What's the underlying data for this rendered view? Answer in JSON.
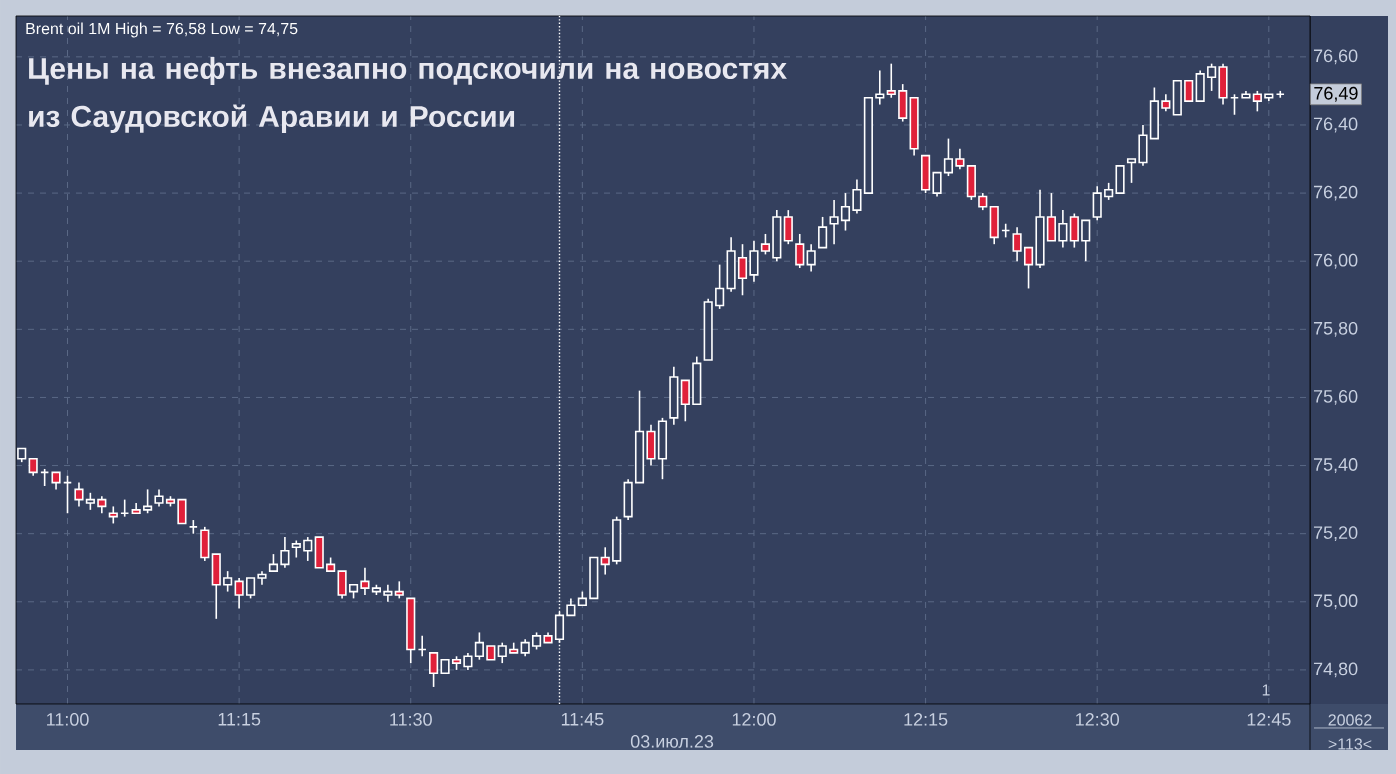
{
  "chart_data": {
    "type": "candlestick",
    "title": "Цены на нефть внезапно подскочили на новостях из Саудовской Аравии и России",
    "xlabel": "03.июл.23",
    "annotations": [
      "Brent oil 1M High = 76,58 Low = 74,75",
      {
        "text": "76,49",
        "y": 76.49
      },
      "1",
      "20062",
      ">113<"
    ],
    "x": [
      10.9333,
      10.95,
      10.9667,
      10.9833,
      11,
      11.0167,
      11.0333,
      11.05,
      11.0667,
      11.0833,
      11.1,
      11.1167,
      11.1333,
      11.15,
      11.1667,
      11.1833,
      11.2,
      11.2167,
      11.2333,
      11.25,
      11.2667,
      11.2833,
      11.3,
      11.3167,
      11.3333,
      11.35,
      11.3667,
      11.3833,
      11.4,
      11.4167,
      11.4333,
      11.45,
      11.4667,
      11.4833,
      11.5,
      11.5167,
      11.5333,
      11.55,
      11.5667,
      11.5833,
      11.6,
      11.6167,
      11.6333,
      11.65,
      11.6667,
      11.6833,
      11.7,
      11.7167,
      11.7333,
      11.75,
      11.7667,
      11.7833,
      11.8,
      11.8167,
      11.8333,
      11.85,
      11.8667,
      11.8833,
      11.9,
      11.9167,
      11.9333,
      11.95,
      11.9667,
      11.9833,
      12,
      12.0167,
      12.0333,
      12.05,
      12.0667,
      12.0833,
      12.1,
      12.1167,
      12.1333,
      12.15,
      12.1667,
      12.1833,
      12.2,
      12.2167,
      12.2333,
      12.25,
      12.2667,
      12.2833,
      12.3,
      12.3167,
      12.3333,
      12.35,
      12.3667,
      12.3833,
      12.4,
      12.4167,
      12.4333,
      12.45,
      12.4667,
      12.4833,
      12.5,
      12.5167,
      12.5333,
      12.55,
      12.5667,
      12.5833,
      12.6,
      12.6167,
      12.6333,
      12.65,
      12.6667,
      12.6833,
      12.7,
      12.7167,
      12.7333,
      12.75,
      12.7667
    ],
    "ohlc": [
      [
        75.42,
        75.45,
        75.41,
        75.45
      ],
      [
        75.42,
        75.42,
        75.37,
        75.38
      ],
      [
        75.38,
        75.39,
        75.34,
        75.38
      ],
      [
        75.38,
        75.38,
        75.33,
        75.35
      ],
      [
        75.35,
        75.37,
        75.26,
        75.35
      ],
      [
        75.33,
        75.35,
        75.28,
        75.3
      ],
      [
        75.29,
        75.32,
        75.27,
        75.3
      ],
      [
        75.3,
        75.31,
        75.26,
        75.28
      ],
      [
        75.26,
        75.28,
        75.23,
        75.25
      ],
      [
        75.26,
        75.3,
        75.25,
        75.26
      ],
      [
        75.27,
        75.29,
        75.26,
        75.26
      ],
      [
        75.27,
        75.33,
        75.26,
        75.28
      ],
      [
        75.29,
        75.33,
        75.28,
        75.31
      ],
      [
        75.3,
        75.31,
        75.28,
        75.29
      ],
      [
        75.3,
        75.3,
        75.23,
        75.23
      ],
      [
        75.22,
        75.24,
        75.2,
        75.22
      ],
      [
        75.21,
        75.22,
        75.12,
        75.13
      ],
      [
        75.14,
        75.14,
        74.95,
        75.05
      ],
      [
        75.05,
        75.09,
        75.03,
        75.07
      ],
      [
        75.06,
        75.07,
        74.98,
        75.02
      ],
      [
        75.02,
        75.07,
        75.01,
        75.07
      ],
      [
        75.07,
        75.09,
        75.05,
        75.08
      ],
      [
        75.09,
        75.14,
        75.09,
        75.11
      ],
      [
        75.11,
        75.19,
        75.1,
        75.15
      ],
      [
        75.16,
        75.18,
        75.13,
        75.17
      ],
      [
        75.15,
        75.19,
        75.12,
        75.18
      ],
      [
        75.19,
        75.19,
        75.1,
        75.1
      ],
      [
        75.11,
        75.13,
        75.09,
        75.09
      ],
      [
        75.09,
        75.09,
        75.01,
        75.02
      ],
      [
        75.03,
        75.05,
        75.01,
        75.05
      ],
      [
        75.06,
        75.1,
        75.02,
        75.04
      ],
      [
        75.03,
        75.05,
        75.02,
        75.04
      ],
      [
        75.02,
        75.05,
        75.0,
        75.03
      ],
      [
        75.03,
        75.06,
        75.01,
        75.02
      ],
      [
        75.01,
        75.01,
        74.82,
        74.86
      ],
      [
        74.86,
        74.9,
        74.84,
        74.86
      ],
      [
        74.85,
        74.85,
        74.75,
        74.79
      ],
      [
        74.79,
        74.83,
        74.79,
        74.83
      ],
      [
        74.83,
        74.84,
        74.8,
        74.82
      ],
      [
        74.81,
        74.85,
        74.8,
        74.84
      ],
      [
        74.84,
        74.91,
        74.83,
        74.88
      ],
      [
        74.87,
        74.87,
        74.83,
        74.83
      ],
      [
        74.84,
        74.88,
        74.82,
        74.87
      ],
      [
        74.86,
        74.88,
        74.85,
        74.85
      ],
      [
        74.85,
        74.89,
        74.84,
        74.88
      ],
      [
        74.87,
        74.91,
        74.86,
        74.9
      ],
      [
        74.9,
        74.91,
        74.88,
        74.88
      ],
      [
        74.89,
        74.97,
        74.88,
        74.96
      ],
      [
        74.96,
        75.01,
        74.96,
        74.99
      ],
      [
        74.99,
        75.03,
        74.99,
        75.01
      ],
      [
        75.01,
        75.13,
        75.01,
        75.13
      ],
      [
        75.13,
        75.16,
        75.08,
        75.11
      ],
      [
        75.12,
        75.25,
        75.11,
        75.24
      ],
      [
        75.25,
        75.36,
        75.24,
        75.35
      ],
      [
        75.35,
        75.62,
        75.35,
        75.5
      ],
      [
        75.5,
        75.52,
        75.4,
        75.42
      ],
      [
        75.42,
        75.54,
        75.36,
        75.53
      ],
      [
        75.54,
        75.69,
        75.52,
        75.66
      ],
      [
        75.65,
        75.65,
        75.53,
        75.58
      ],
      [
        75.58,
        75.72,
        75.58,
        75.7
      ],
      [
        75.71,
        75.89,
        75.71,
        75.88
      ],
      [
        75.87,
        75.99,
        75.86,
        75.92
      ],
      [
        75.92,
        76.07,
        75.91,
        76.03
      ],
      [
        76.01,
        76.05,
        75.9,
        75.95
      ],
      [
        75.96,
        76.06,
        75.94,
        76.03
      ],
      [
        76.05,
        76.08,
        76.02,
        76.03
      ],
      [
        76.01,
        76.15,
        76.0,
        76.13
      ],
      [
        76.13,
        76.15,
        76.05,
        76.06
      ],
      [
        76.05,
        76.08,
        75.98,
        75.99
      ],
      [
        75.99,
        76.05,
        75.97,
        76.03
      ],
      [
        76.04,
        76.13,
        76.04,
        76.1
      ],
      [
        76.11,
        76.18,
        76.05,
        76.13
      ],
      [
        76.12,
        76.2,
        76.09,
        76.16
      ],
      [
        76.15,
        76.24,
        76.14,
        76.21
      ],
      [
        76.2,
        76.48,
        76.2,
        76.48
      ],
      [
        76.48,
        76.56,
        76.46,
        76.49
      ],
      [
        76.5,
        76.58,
        76.48,
        76.49
      ],
      [
        76.5,
        76.52,
        76.41,
        76.42
      ],
      [
        76.48,
        76.48,
        76.31,
        76.33
      ],
      [
        76.31,
        76.31,
        76.2,
        76.21
      ],
      [
        76.2,
        76.26,
        76.19,
        76.26
      ],
      [
        76.26,
        76.36,
        76.25,
        76.3
      ],
      [
        76.3,
        76.33,
        76.27,
        76.28
      ],
      [
        76.28,
        76.28,
        76.18,
        76.19
      ],
      [
        76.19,
        76.2,
        76.15,
        76.16
      ],
      [
        76.16,
        76.16,
        76.05,
        76.07
      ],
      [
        76.09,
        76.11,
        76.07,
        76.09
      ],
      [
        76.08,
        76.1,
        76.0,
        76.03
      ],
      [
        76.04,
        76.04,
        75.92,
        75.99
      ],
      [
        75.99,
        76.21,
        75.98,
        76.13
      ],
      [
        76.13,
        76.2,
        76.06,
        76.06
      ],
      [
        76.06,
        76.15,
        76.04,
        76.11
      ],
      [
        76.13,
        76.14,
        76.04,
        76.06
      ],
      [
        76.06,
        76.12,
        76.0,
        76.12
      ],
      [
        76.13,
        76.22,
        76.12,
        76.2
      ],
      [
        76.19,
        76.23,
        76.18,
        76.21
      ],
      [
        76.2,
        76.28,
        76.2,
        76.28
      ],
      [
        76.29,
        76.3,
        76.23,
        76.3
      ],
      [
        76.29,
        76.4,
        76.28,
        76.37
      ],
      [
        76.36,
        76.51,
        76.36,
        76.47
      ],
      [
        76.47,
        76.49,
        76.44,
        76.45
      ],
      [
        76.43,
        76.53,
        76.43,
        76.53
      ],
      [
        76.53,
        76.53,
        76.47,
        76.47
      ],
      [
        76.47,
        76.56,
        76.47,
        76.55
      ],
      [
        76.54,
        76.58,
        76.5,
        76.57
      ],
      [
        76.57,
        76.58,
        76.46,
        76.48
      ],
      [
        76.48,
        76.49,
        76.43,
        76.48
      ],
      [
        76.48,
        76.5,
        76.48,
        76.49
      ],
      [
        76.49,
        76.5,
        76.44,
        76.47
      ],
      [
        76.48,
        76.49,
        76.47,
        76.49
      ],
      [
        76.49,
        76.5,
        76.48,
        76.49
      ]
    ],
    "xlim": [
      10.925,
      12.81
    ],
    "ylim": [
      74.7,
      76.72
    ],
    "xticks": [
      {
        "value": 11,
        "label": "11:00"
      },
      {
        "value": 11.25,
        "label": "11:15"
      },
      {
        "value": 11.5,
        "label": "11:30"
      },
      {
        "value": 11.75,
        "label": "11:45"
      },
      {
        "value": 12,
        "label": "12:00"
      },
      {
        "value": 12.25,
        "label": "12:15"
      },
      {
        "value": 12.5,
        "label": "12:30"
      },
      {
        "value": 12.75,
        "label": "12:45"
      }
    ],
    "yticks": [
      {
        "value": 74.8,
        "label": "74,80"
      },
      {
        "value": 75,
        "label": "75,00"
      },
      {
        "value": 75.2,
        "label": "75,20"
      },
      {
        "value": 75.4,
        "label": "75,40"
      },
      {
        "value": 75.6,
        "label": "75,60"
      },
      {
        "value": 75.8,
        "label": "75,80"
      },
      {
        "value": 76,
        "label": "76,00"
      },
      {
        "value": 76.2,
        "label": "76,20"
      },
      {
        "value": 76.4,
        "label": "76,40"
      },
      {
        "value": 76.6,
        "label": "76,60"
      }
    ],
    "ref_lines": [
      {
        "axis": "x",
        "value": 11.7167,
        "line_style": "dotted",
        "color": "#ffffff"
      }
    ],
    "grid": true
  }
}
